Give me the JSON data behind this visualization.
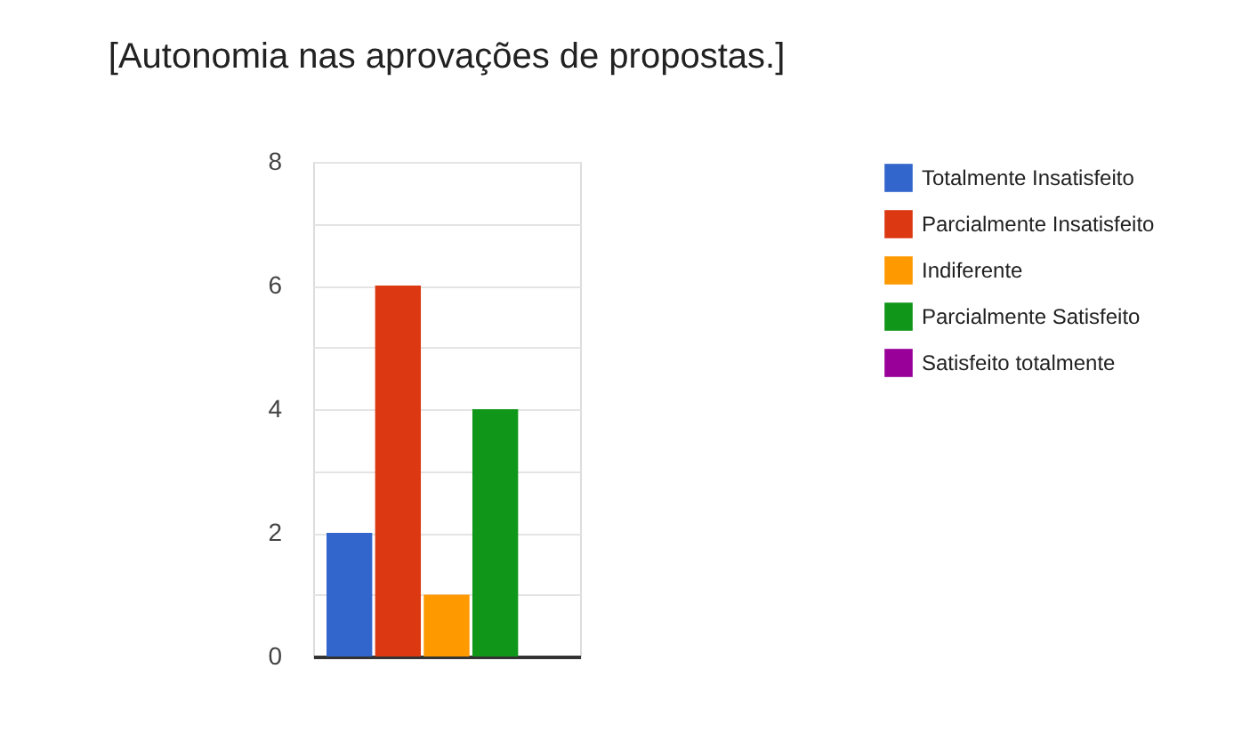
{
  "chart_data": {
    "type": "bar",
    "title": "[Autonomia nas aprovações de propostas.]",
    "categories": [
      null
    ],
    "series": [
      {
        "name": "Totalmente Insatisfeito",
        "color": "#3366cc",
        "values": [
          2
        ]
      },
      {
        "name": "Parcialmente Insatisfeito",
        "color": "#dc3912",
        "values": [
          6
        ]
      },
      {
        "name": "Indiferente",
        "color": "#ff9900",
        "values": [
          1
        ]
      },
      {
        "name": "Parcialmente Satisfeito",
        "color": "#109618",
        "values": [
          4
        ]
      },
      {
        "name": "Satisfeito totalmente",
        "color": "#990099",
        "values": [
          0
        ]
      }
    ],
    "ylim": [
      0,
      8
    ],
    "yticks": [
      0,
      {
        "value": 1,
        "label": null
      },
      2,
      {
        "value": 3,
        "label": null
      },
      4,
      {
        "value": 5,
        "label": null
      },
      6,
      {
        "value": 7,
        "label": null
      },
      8
    ],
    "grid": "y",
    "legend": "right"
  }
}
